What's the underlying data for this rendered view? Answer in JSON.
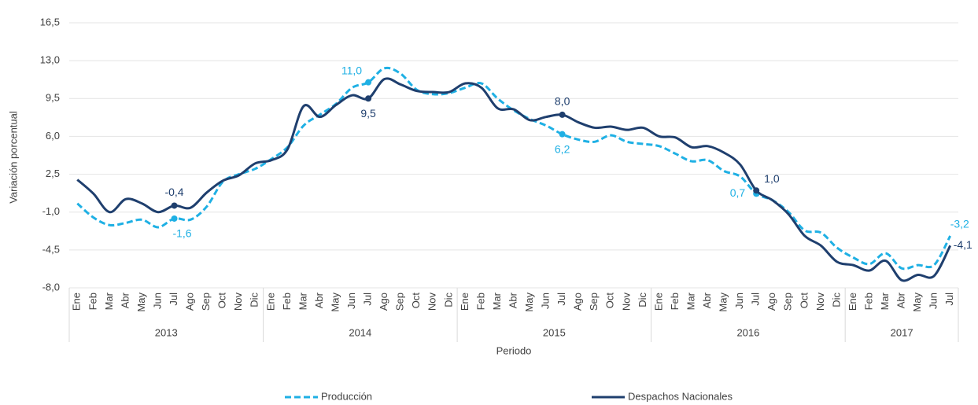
{
  "chart_data": {
    "type": "line",
    "y_label": "Variación porcentual",
    "x_label": "Periodo",
    "categories": [
      "Ene",
      "Feb",
      "Mar",
      "Abr",
      "May",
      "Jun",
      "Jul",
      "Ago",
      "Sep",
      "Oct",
      "Nov",
      "Dic",
      "Ene",
      "Feb",
      "Mar",
      "Abr",
      "May",
      "Jun",
      "Jul",
      "Ago",
      "Sep",
      "Oct",
      "Nov",
      "Dic",
      "Ene",
      "Feb",
      "Mar",
      "Abr",
      "May",
      "Jun",
      "Jul",
      "Ago",
      "Sep",
      "Oct",
      "Nov",
      "Dic",
      "Ene",
      "Feb",
      "Mar",
      "Abr",
      "May",
      "Jun",
      "Jul",
      "Ago",
      "Sep",
      "Oct",
      "Nov",
      "Dic",
      "Ene",
      "Feb",
      "Mar",
      "Abr",
      "May",
      "Jun",
      "Jul"
    ],
    "years": [
      "2013",
      "2014",
      "2015",
      "2016",
      "2017"
    ],
    "ylim": [
      -8,
      16.5
    ],
    "yticks": [
      {
        "value": -8,
        "label": "-8,0"
      },
      {
        "value": -4.5,
        "label": "-4,5"
      },
      {
        "value": -1,
        "label": "-1,0"
      },
      {
        "value": 2.5,
        "label": "2,5"
      },
      {
        "value": 6,
        "label": "6,0"
      },
      {
        "value": 9.5,
        "label": "9,5"
      },
      {
        "value": 13,
        "label": "13,0"
      },
      {
        "value": 16.5,
        "label": "16,5"
      }
    ],
    "grid": true,
    "legend": "bottom",
    "series": [
      {
        "name": "Producción",
        "color": "#1fb0e4",
        "dashed": true,
        "values": [
          -0.2,
          -1.5,
          -2.2,
          -2.0,
          -1.7,
          -2.4,
          -1.6,
          -1.7,
          -0.5,
          1.8,
          2.5,
          3.0,
          3.9,
          5.0,
          7.0,
          8.0,
          9.0,
          10.5,
          11.0,
          12.3,
          11.8,
          10.3,
          9.9,
          10.0,
          10.5,
          10.9,
          9.5,
          8.4,
          7.6,
          7.0,
          6.2,
          5.7,
          5.5,
          6.1,
          5.5,
          5.3,
          5.1,
          4.4,
          3.7,
          3.8,
          2.8,
          2.3,
          0.7,
          0.1,
          -1.0,
          -2.7,
          -2.9,
          -4.3,
          -5.2,
          -5.8,
          -4.8,
          -6.2,
          -5.9,
          -5.9,
          -3.2
        ],
        "value_labels": [
          null,
          null,
          null,
          null,
          null,
          null,
          "-1,6",
          null,
          null,
          null,
          null,
          null,
          null,
          null,
          null,
          null,
          null,
          null,
          "11,0",
          null,
          null,
          null,
          null,
          null,
          null,
          null,
          null,
          null,
          null,
          null,
          "6,2",
          null,
          null,
          null,
          null,
          null,
          null,
          null,
          null,
          null,
          null,
          null,
          "0,7",
          null,
          null,
          null,
          null,
          null,
          null,
          null,
          null,
          null,
          null,
          null,
          "-3,2"
        ]
      },
      {
        "name": "Despachos Nacionales",
        "color": "#1f3f6e",
        "dashed": false,
        "values": [
          2.0,
          0.7,
          -1.0,
          0.2,
          -0.2,
          -1.0,
          -0.4,
          -0.6,
          0.8,
          1.9,
          2.4,
          3.5,
          3.8,
          4.8,
          8.8,
          7.8,
          8.9,
          9.8,
          9.5,
          11.3,
          10.8,
          10.2,
          10.1,
          10.1,
          10.9,
          10.5,
          8.6,
          8.5,
          7.5,
          7.8,
          8.0,
          7.3,
          6.8,
          6.9,
          6.6,
          6.8,
          6.0,
          5.9,
          5.0,
          5.1,
          4.5,
          3.4,
          1.0,
          0.1,
          -1.2,
          -3.2,
          -4.1,
          -5.6,
          -5.9,
          -6.4,
          -5.5,
          -7.3,
          -6.8,
          -6.9,
          -4.1
        ],
        "value_labels": [
          null,
          null,
          null,
          null,
          null,
          null,
          "-0,4",
          null,
          null,
          null,
          null,
          null,
          null,
          null,
          null,
          null,
          null,
          null,
          "9,5",
          null,
          null,
          null,
          null,
          null,
          null,
          null,
          null,
          null,
          null,
          null,
          "8,0",
          null,
          null,
          null,
          null,
          null,
          null,
          null,
          null,
          null,
          null,
          null,
          "1,0",
          null,
          null,
          null,
          null,
          null,
          null,
          null,
          null,
          null,
          null,
          null,
          "-4,1"
        ]
      }
    ]
  }
}
